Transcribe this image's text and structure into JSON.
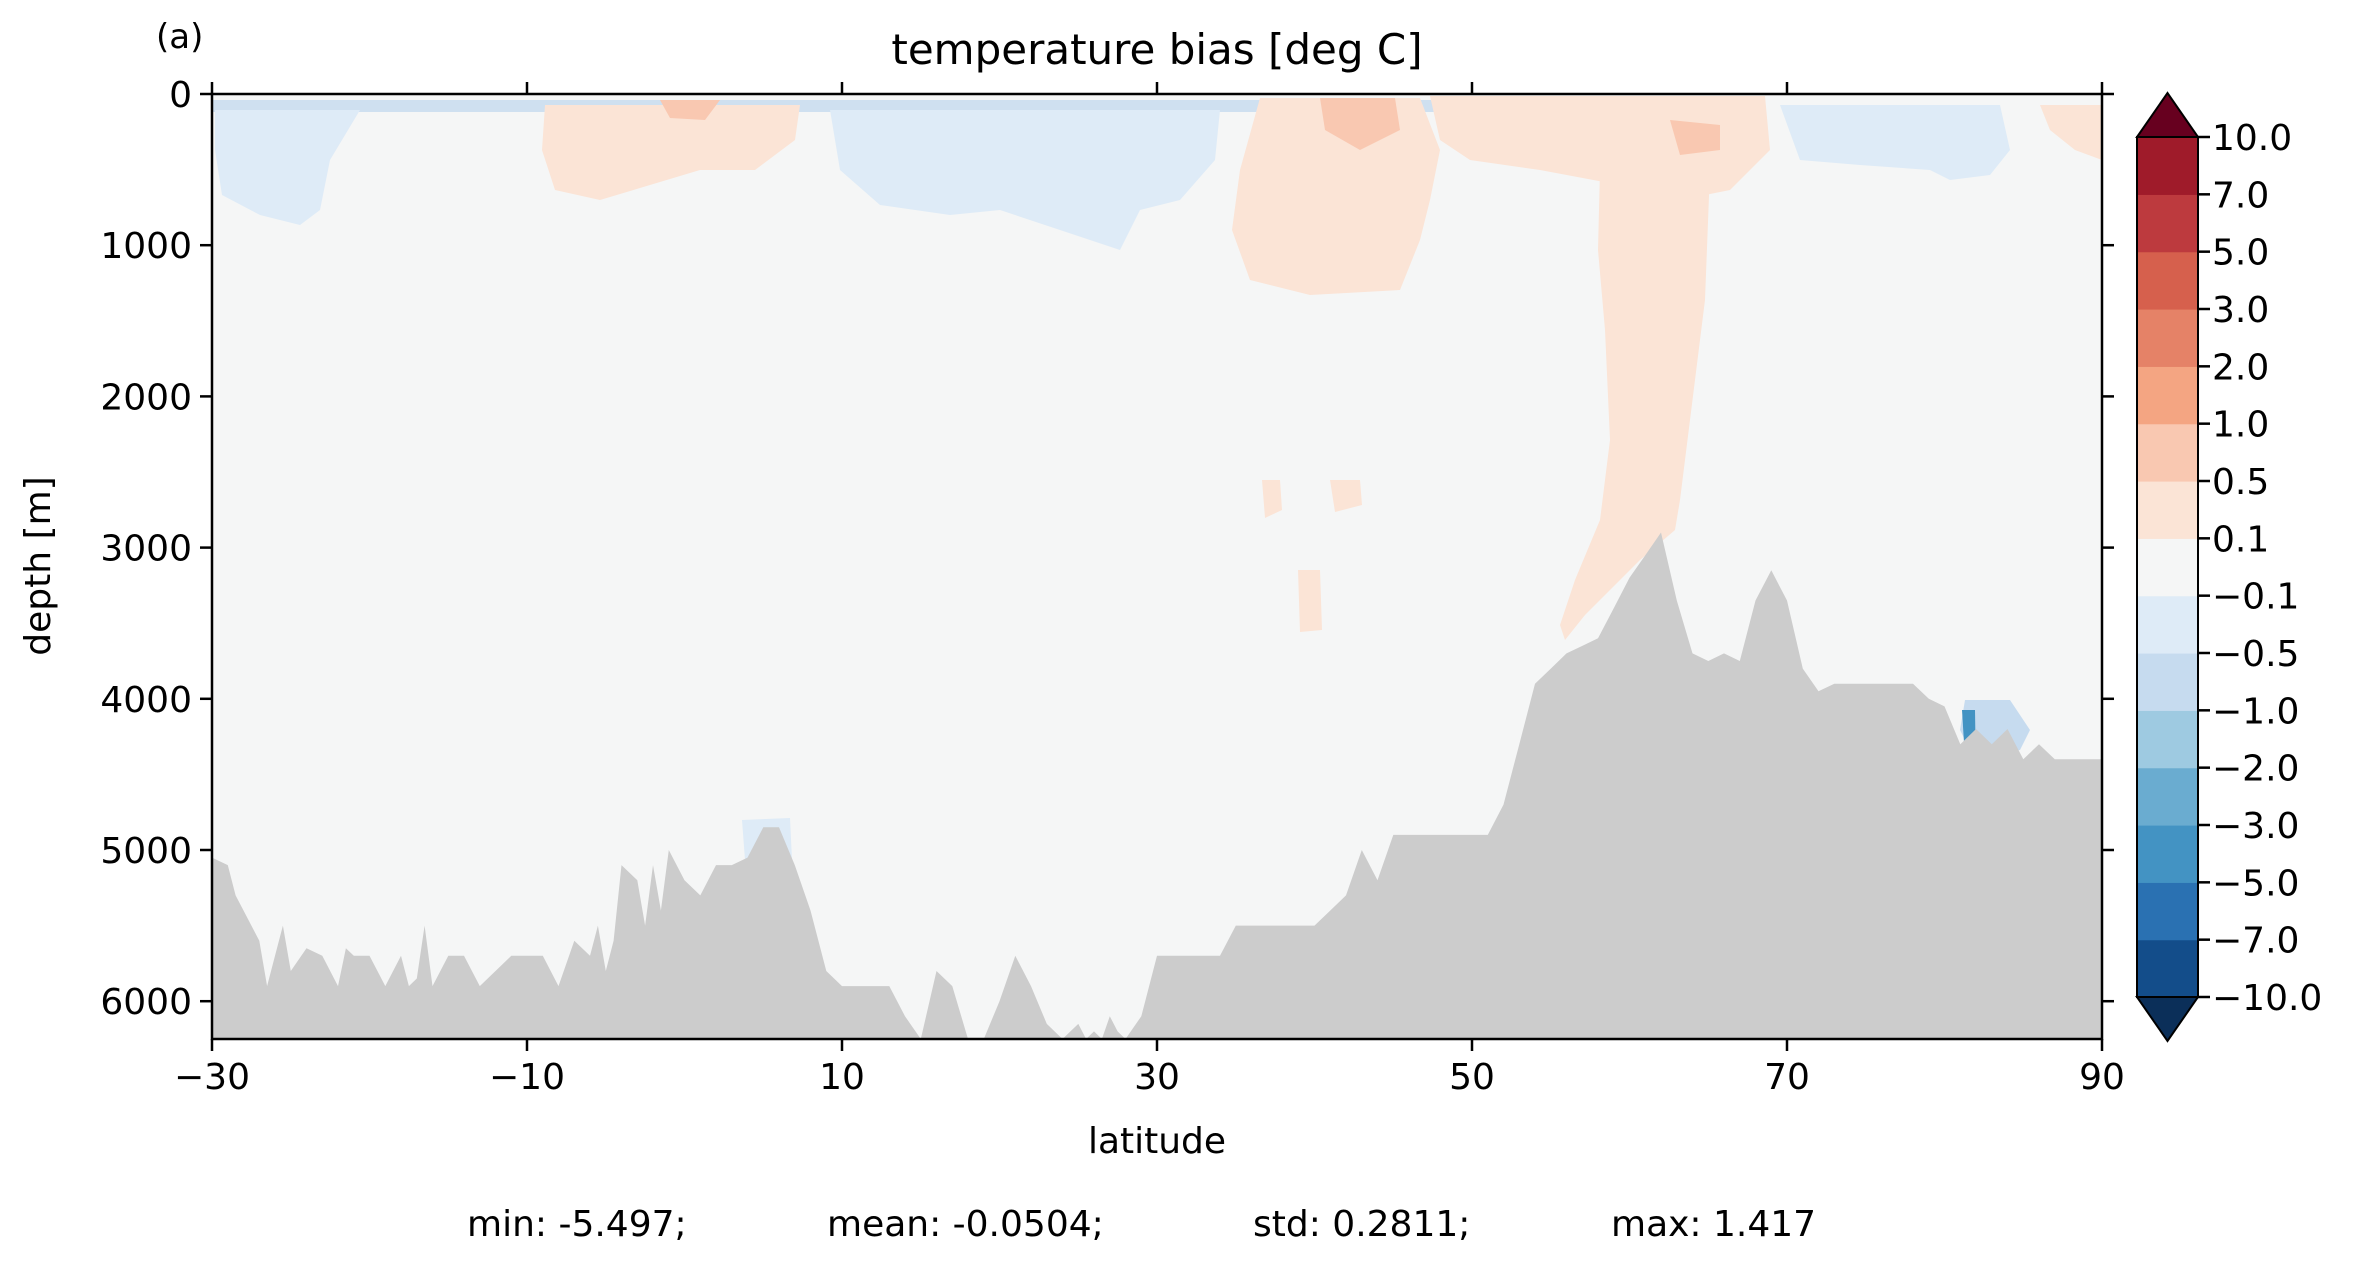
{
  "chart_data": {
    "type": "heatmap",
    "panel_label": "(a)",
    "title": "temperature bias [deg C]",
    "xlabel": "latitude",
    "ylabel": "depth [m]",
    "xlim": [
      -30,
      90
    ],
    "ylim": [
      6250,
      0
    ],
    "xticks": [
      -30,
      -10,
      10,
      30,
      50,
      70,
      90
    ],
    "xtick_labels": [
      "−30",
      "−10",
      "10",
      "30",
      "50",
      "70",
      "90"
    ],
    "yticks": [
      0,
      1000,
      2000,
      3000,
      4000,
      5000,
      6000
    ],
    "ytick_labels": [
      "0",
      "1000",
      "2000",
      "3000",
      "4000",
      "5000",
      "6000"
    ],
    "colorbar": {
      "levels": [
        -10,
        -7,
        -5,
        -3,
        -2,
        -1,
        -0.5,
        -0.1,
        0.1,
        0.5,
        1,
        2,
        3,
        5,
        7,
        10
      ],
      "labels": [
        "−10.0",
        "−7.0",
        "−5.0",
        "−3.0",
        "−2.0",
        "−1.0",
        "−0.5",
        "−0.1",
        "0.1",
        "0.5",
        "1.0",
        "2.0",
        "3.0",
        "5.0",
        "7.0",
        "10.0"
      ],
      "colors": [
        "#134d8a",
        "#2a71b2",
        "#4393c3",
        "#6aacd0",
        "#9ecae1",
        "#c6dbef",
        "#deebf7",
        "#f5f6f6",
        "#fbe4d6",
        "#f9c8b1",
        "#f4a582",
        "#e58267",
        "#d6604d",
        "#bd3a3e",
        "#9f1b2a",
        "#7a0c20"
      ],
      "extend_colors": {
        "under": "#0b2f59",
        "over": "#67001f"
      }
    },
    "land_color": "#cccccc",
    "bathymetry": {
      "lat": [
        -30,
        -29,
        -28.5,
        -27,
        -26.5,
        -26,
        -25.5,
        -25,
        -24,
        -23,
        -22,
        -21.5,
        -21,
        -20,
        -19,
        -18,
        -17.5,
        -17,
        -16.5,
        -16,
        -15,
        -14,
        -13,
        -12,
        -11,
        -10,
        -9,
        -8,
        -7,
        -6,
        -5.5,
        -5,
        -4.5,
        -4,
        -3,
        -2.5,
        -2,
        -1.5,
        -1,
        0,
        1,
        2,
        3,
        4,
        5,
        6,
        7,
        8,
        9,
        10,
        11,
        12,
        13,
        14,
        15,
        16,
        17,
        18,
        19,
        20,
        21,
        22,
        23,
        24,
        24.5,
        25,
        25.5,
        26,
        26.5,
        27,
        27.5,
        28,
        29,
        30,
        31,
        32,
        33,
        34,
        35,
        36,
        37,
        38,
        39,
        40,
        41,
        42,
        43,
        44,
        45,
        46,
        47,
        48,
        49,
        50,
        51,
        52,
        53,
        54,
        55,
        56,
        57,
        58,
        59,
        60,
        61,
        62,
        63,
        64,
        65,
        66,
        67,
        68,
        69,
        70,
        71,
        72,
        73,
        74,
        75,
        76,
        77,
        78,
        79,
        80,
        81,
        82,
        83,
        84,
        85,
        86,
        87,
        88,
        89,
        90
      ],
      "depth": [
        5050,
        5100,
        5300,
        5600,
        5900,
        5700,
        5500,
        5800,
        5650,
        5700,
        5900,
        5650,
        5700,
        5700,
        5900,
        5700,
        5900,
        5850,
        5500,
        5900,
        5700,
        5700,
        5900,
        5800,
        5700,
        5700,
        5700,
        5900,
        5600,
        5700,
        5500,
        5800,
        5600,
        5100,
        5200,
        5500,
        5100,
        5400,
        5000,
        5200,
        5300,
        5100,
        5100,
        5050,
        4850,
        4850,
        5100,
        5400,
        5800,
        5900,
        5900,
        5900,
        5900,
        6100,
        6250,
        5800,
        5900,
        6250,
        6250,
        6000,
        5700,
        5900,
        6150,
        6250,
        6200,
        6150,
        6250,
        6200,
        6250,
        6100,
        6200,
        6250,
        6100,
        5700,
        5700,
        5700,
        5700,
        5700,
        5500,
        5500,
        5500,
        5500,
        5500,
        5500,
        5400,
        5300,
        5000,
        5200,
        4900,
        4900,
        4900,
        4900,
        4900,
        4900,
        4900,
        4700,
        4300,
        3900,
        3800,
        3700,
        3650,
        3600,
        3400,
        3200,
        3050,
        2900,
        3350,
        3700,
        3750,
        3700,
        3750,
        3350,
        3150,
        3350,
        3800,
        3950,
        3900,
        3900,
        3900,
        3900,
        3900,
        3900,
        4000,
        4050,
        4300,
        4200,
        4300,
        4200,
        4400,
        4300,
        4400,
        4400,
        4400,
        4400
      ]
    },
    "stats": {
      "min": "min: -5.497;",
      "mean": "mean: -0.0504;",
      "std": "std: 0.2811;",
      "max": "max: 1.417"
    }
  }
}
